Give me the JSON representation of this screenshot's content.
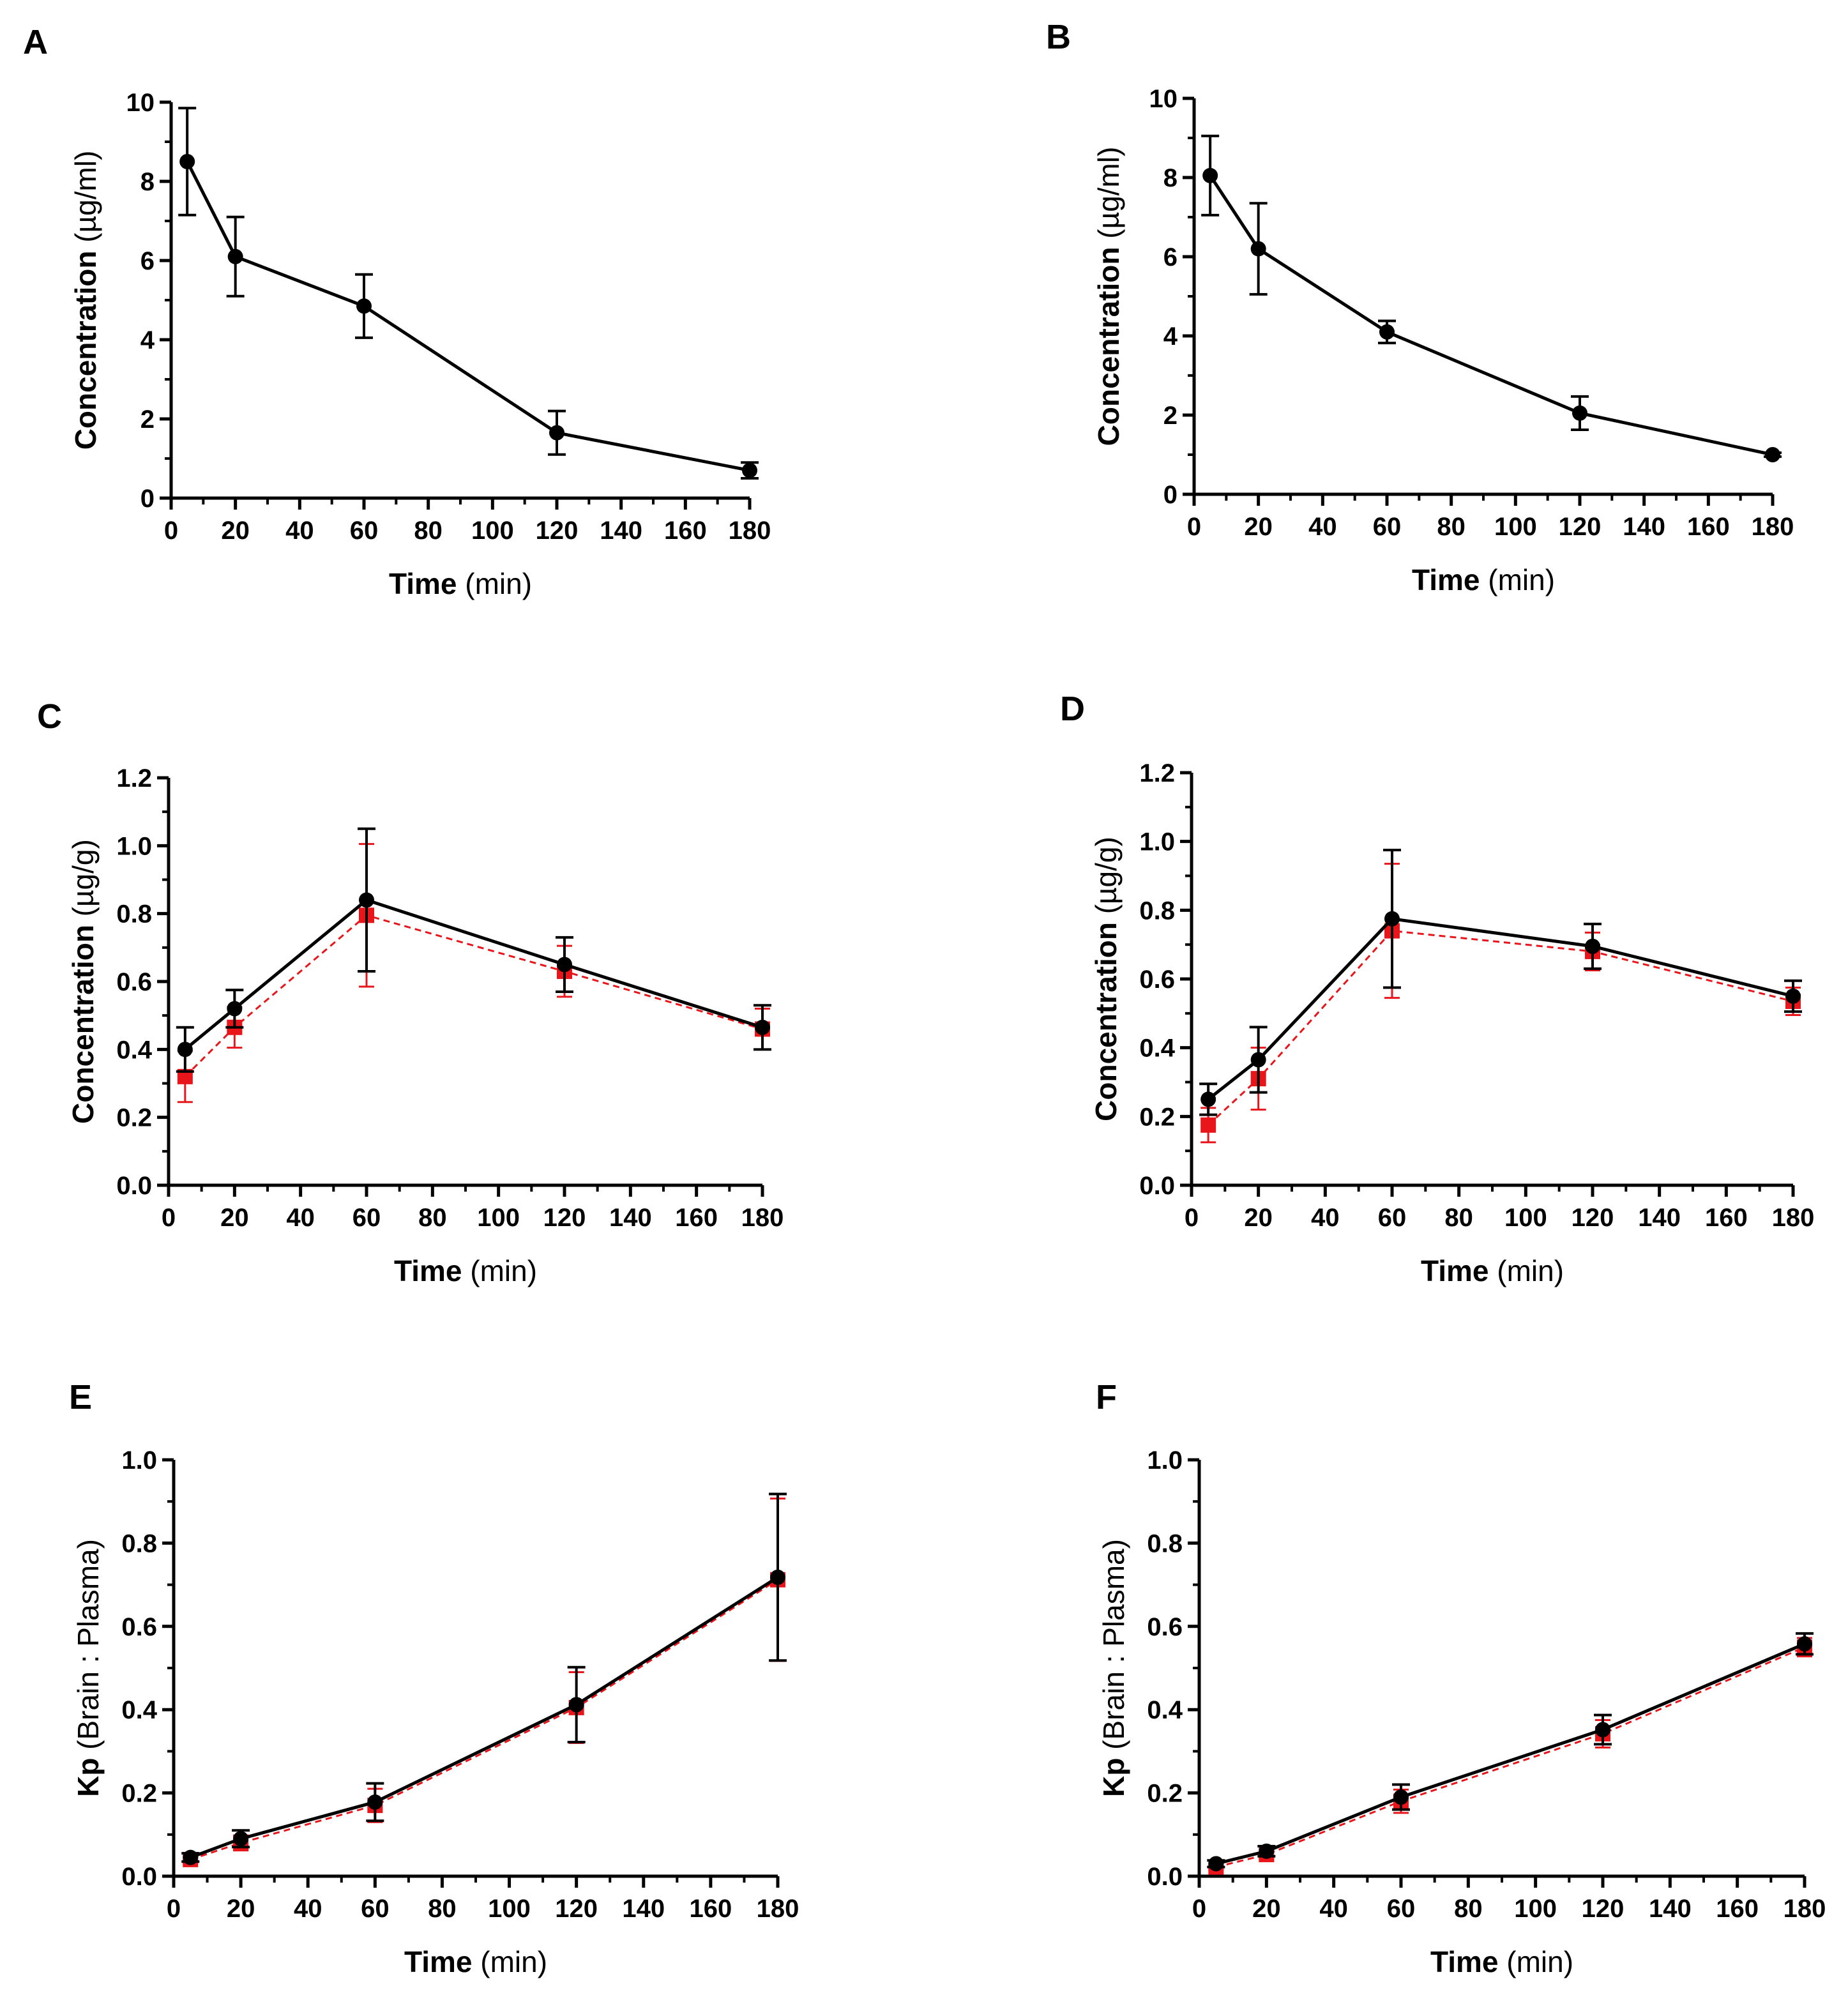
{
  "figure": {
    "panels": [
      "A",
      "B",
      "C",
      "D",
      "E",
      "F"
    ]
  },
  "colors": {
    "series_black": "#000000",
    "series_red": "#e8161b"
  },
  "chart_data": [
    {
      "panel": "A",
      "type": "line",
      "xlabel_bold": "Time",
      "xlabel_rest": " (min)",
      "ylabel_bold": "Concentration",
      "ylabel_rest": " (µg/ml)",
      "xlim": [
        0,
        180
      ],
      "ylim": [
        0,
        10
      ],
      "x_ticks": [
        "0",
        "20",
        "40",
        "60",
        "80",
        "100",
        "120",
        "140",
        "160",
        "180"
      ],
      "y_ticks": [
        "0",
        "2",
        "4",
        "6",
        "8",
        "10"
      ],
      "series": [
        {
          "name": "black",
          "color": "#000000",
          "style": "solid",
          "marker": "circle",
          "x": [
            5,
            20,
            60,
            120,
            180
          ],
          "y": [
            8.5,
            6.1,
            4.85,
            1.65,
            0.7
          ],
          "err": [
            1.35,
            1.0,
            0.8,
            0.55,
            0.2
          ]
        }
      ]
    },
    {
      "panel": "B",
      "type": "line",
      "xlabel_bold": "Time",
      "xlabel_rest": " (min)",
      "ylabel_bold": "Concentration",
      "ylabel_rest": " (µg/ml)",
      "xlim": [
        0,
        180
      ],
      "ylim": [
        0,
        10
      ],
      "x_ticks": [
        "0",
        "20",
        "40",
        "60",
        "80",
        "100",
        "120",
        "140",
        "160",
        "180"
      ],
      "y_ticks": [
        "0",
        "2",
        "4",
        "6",
        "8",
        "10"
      ],
      "series": [
        {
          "name": "black",
          "color": "#000000",
          "style": "solid",
          "marker": "circle",
          "x": [
            5,
            20,
            60,
            120,
            180
          ],
          "y": [
            8.05,
            6.2,
            4.1,
            2.05,
            1.0
          ],
          "err": [
            1.0,
            1.15,
            0.28,
            0.42,
            0.05
          ]
        }
      ]
    },
    {
      "panel": "C",
      "type": "line",
      "xlabel_bold": "Time",
      "xlabel_rest": " (min)",
      "ylabel_bold": "Concentration",
      "ylabel_rest": " (µg/g)",
      "xlim": [
        0,
        180
      ],
      "ylim": [
        0,
        1.2
      ],
      "x_ticks": [
        "0",
        "20",
        "40",
        "60",
        "80",
        "100",
        "120",
        "140",
        "160",
        "180"
      ],
      "y_ticks": [
        "0.0",
        "0.2",
        "0.4",
        "0.6",
        "0.8",
        "1.0",
        "1.2"
      ],
      "series": [
        {
          "name": "black",
          "color": "#000000",
          "style": "solid",
          "marker": "circle",
          "x": [
            5,
            20,
            60,
            120,
            180
          ],
          "y": [
            0.4,
            0.52,
            0.84,
            0.65,
            0.465
          ],
          "err": [
            0.065,
            0.055,
            0.21,
            0.08,
            0.065
          ]
        },
        {
          "name": "red",
          "color": "#e8161b",
          "style": "dashed",
          "marker": "square",
          "x": [
            5,
            20,
            60,
            120,
            180
          ],
          "y": [
            0.32,
            0.465,
            0.795,
            0.63,
            0.46
          ],
          "err": [
            0.075,
            0.06,
            0.21,
            0.075,
            0.06
          ]
        }
      ]
    },
    {
      "panel": "D",
      "type": "line",
      "xlabel_bold": "Time",
      "xlabel_rest": " (min)",
      "ylabel_bold": "Concentration",
      "ylabel_rest": " (µg/g)",
      "xlim": [
        0,
        180
      ],
      "ylim": [
        0,
        1.2
      ],
      "x_ticks": [
        "0",
        "20",
        "40",
        "60",
        "80",
        "100",
        "120",
        "140",
        "160",
        "180"
      ],
      "y_ticks": [
        "0.0",
        "0.2",
        "0.4",
        "0.6",
        "0.8",
        "1.0",
        "1.2"
      ],
      "series": [
        {
          "name": "black",
          "color": "#000000",
          "style": "solid",
          "marker": "circle",
          "x": [
            5,
            20,
            60,
            120,
            180
          ],
          "y": [
            0.25,
            0.365,
            0.775,
            0.695,
            0.55
          ],
          "err": [
            0.045,
            0.095,
            0.2,
            0.065,
            0.045
          ]
        },
        {
          "name": "red",
          "color": "#e8161b",
          "style": "dashed",
          "marker": "square",
          "x": [
            5,
            20,
            60,
            120,
            180
          ],
          "y": [
            0.175,
            0.31,
            0.74,
            0.68,
            0.535
          ],
          "err": [
            0.05,
            0.09,
            0.195,
            0.055,
            0.04
          ]
        }
      ]
    },
    {
      "panel": "E",
      "type": "line",
      "xlabel_bold": "Time",
      "xlabel_rest": " (min)",
      "ylabel_bold": "Kp",
      "ylabel_rest": " (Brain : Plasma)",
      "xlim": [
        0,
        180
      ],
      "ylim": [
        0,
        1.0
      ],
      "x_ticks": [
        "0",
        "20",
        "40",
        "60",
        "80",
        "100",
        "120",
        "140",
        "160",
        "180"
      ],
      "y_ticks": [
        "0.0",
        "0.2",
        "0.4",
        "0.6",
        "0.8",
        "1.0"
      ],
      "series": [
        {
          "name": "black",
          "color": "#000000",
          "style": "solid",
          "marker": "circle",
          "x": [
            5,
            20,
            60,
            120,
            180
          ],
          "y": [
            0.045,
            0.09,
            0.178,
            0.412,
            0.718
          ],
          "err": [
            0.01,
            0.02,
            0.045,
            0.09,
            0.2
          ]
        },
        {
          "name": "red",
          "color": "#e8161b",
          "style": "dashed",
          "marker": "square",
          "x": [
            5,
            20,
            60,
            120,
            180
          ],
          "y": [
            0.04,
            0.08,
            0.17,
            0.405,
            0.712
          ],
          "err": [
            0.008,
            0.018,
            0.04,
            0.085,
            0.195
          ]
        }
      ]
    },
    {
      "panel": "F",
      "type": "line",
      "xlabel_bold": "Time",
      "xlabel_rest": " (min)",
      "ylabel_bold": "Kp",
      "ylabel_rest": " (Brain : Plasma)",
      "xlim": [
        0,
        180
      ],
      "ylim": [
        0,
        1.0
      ],
      "x_ticks": [
        "0",
        "20",
        "40",
        "60",
        "80",
        "100",
        "120",
        "140",
        "160",
        "180"
      ],
      "y_ticks": [
        "0.0",
        "0.2",
        "0.4",
        "0.6",
        "0.8",
        "1.0"
      ],
      "series": [
        {
          "name": "black",
          "color": "#000000",
          "style": "solid",
          "marker": "circle",
          "x": [
            5,
            20,
            60,
            120,
            180
          ],
          "y": [
            0.03,
            0.06,
            0.19,
            0.352,
            0.558
          ],
          "err": [
            0.008,
            0.012,
            0.03,
            0.035,
            0.025
          ]
        },
        {
          "name": "red",
          "color": "#e8161b",
          "style": "dashed",
          "marker": "square",
          "x": [
            5,
            20,
            60,
            120,
            180
          ],
          "y": [
            0.022,
            0.052,
            0.18,
            0.342,
            0.55
          ],
          "err": [
            0.006,
            0.01,
            0.028,
            0.033,
            0.022
          ]
        }
      ]
    }
  ]
}
